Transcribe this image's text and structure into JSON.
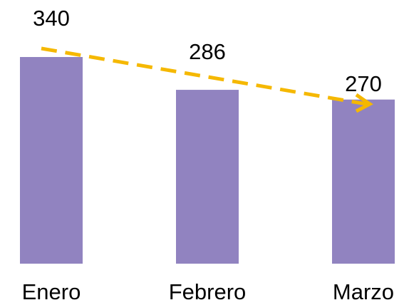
{
  "chart_data": {
    "type": "bar",
    "categories": [
      "Enero",
      "Febrero",
      "Marzo"
    ],
    "values": [
      340,
      286,
      270
    ],
    "color": "#9183c0"
  }
}
